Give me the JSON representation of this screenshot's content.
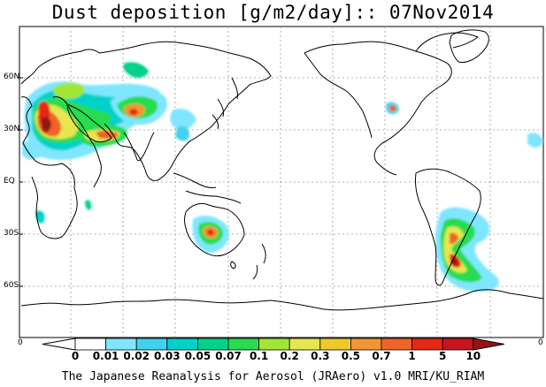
{
  "title": "Dust deposition [g/m2/day]:: 07Nov2014",
  "lat_labels": [
    "60N",
    "30N",
    "EQ",
    "30S",
    "60S"
  ],
  "lon_edge_left": "0",
  "lon_edge_right": "0",
  "colorbar": {
    "ticks": [
      "0",
      "0.01",
      "0.02",
      "0.03",
      "0.05",
      "0.07",
      "0.1",
      "0.2",
      "0.3",
      "0.5",
      "0.7",
      "1",
      "5",
      "10"
    ],
    "colors": [
      "#ffffff",
      "#7fe6ff",
      "#3fd2f0",
      "#00d2c8",
      "#00d28c",
      "#28dc50",
      "#a0e632",
      "#e6e650",
      "#f0c828",
      "#f09632",
      "#f06428",
      "#e62814",
      "#c8141e",
      "#961414"
    ],
    "under_color": "#ffffff",
    "over_color": "#961414"
  },
  "credit": "The Japanese Reanalysis for Aerosol (JRAero) v1.0 MRI/KU_RIAM"
}
